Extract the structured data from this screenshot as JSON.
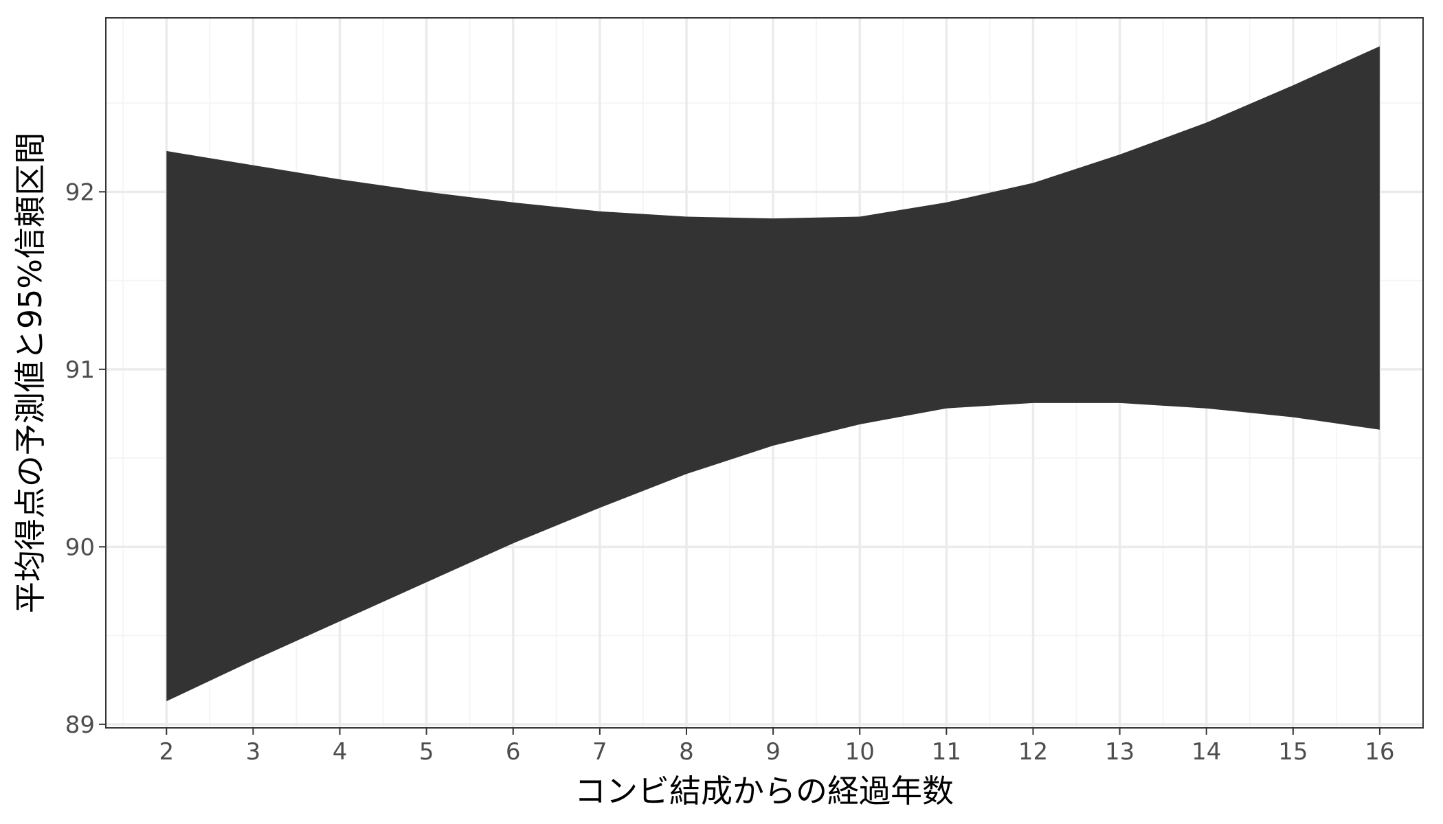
{
  "chart_data": {
    "type": "area",
    "xlabel": "コンビ結成からの経過年数",
    "ylabel": "平均得点の予測値と95%信頼区間",
    "xlim": [
      1.3,
      16.5
    ],
    "ylim": [
      88.98,
      92.98
    ],
    "x_ticks": [
      2,
      3,
      4,
      5,
      6,
      7,
      8,
      9,
      10,
      11,
      12,
      13,
      14,
      15,
      16
    ],
    "y_ticks": [
      89,
      90,
      91,
      92
    ],
    "x_tick_labels": [
      "2",
      "3",
      "4",
      "5",
      "6",
      "7",
      "8",
      "9",
      "10",
      "11",
      "12",
      "13",
      "14",
      "15",
      "16"
    ],
    "y_tick_labels": [
      "89",
      "90",
      "91",
      "92"
    ],
    "grid": true,
    "series": [
      {
        "x": [
          2,
          3,
          4,
          5,
          6,
          7,
          8,
          9,
          10,
          11,
          12,
          13,
          14,
          15,
          16
        ],
        "lower": [
          89.13,
          89.36,
          89.58,
          89.8,
          90.02,
          90.22,
          90.41,
          90.57,
          90.69,
          90.78,
          90.81,
          90.81,
          90.78,
          90.73,
          90.66
        ],
        "upper": [
          92.23,
          92.15,
          92.07,
          92.0,
          91.94,
          91.89,
          91.86,
          91.85,
          91.86,
          91.94,
          92.05,
          92.21,
          92.39,
          92.6,
          92.82
        ]
      }
    ],
    "colors": {
      "band": "#333333",
      "panel_border": "#333333",
      "grid_major": "#ebebeb",
      "grid_minor": "#f5f5f5"
    }
  }
}
